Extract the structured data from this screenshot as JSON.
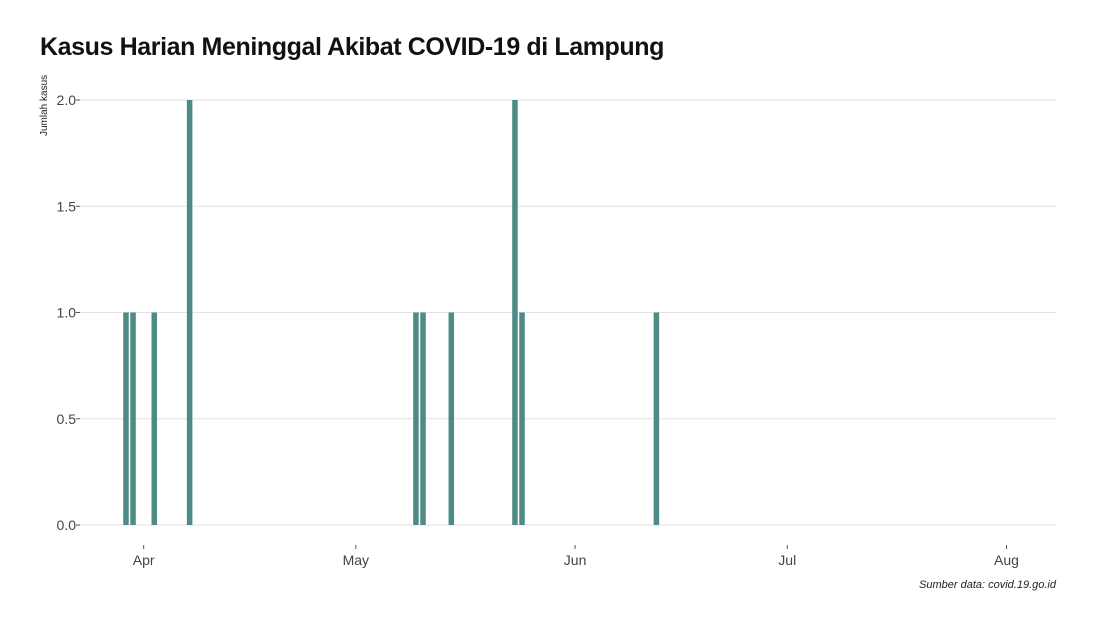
{
  "chart_data": {
    "type": "bar",
    "title": "Kasus Harian Meninggal Akibat COVID-19 di Lampung",
    "xlabel": "",
    "ylabel": "Jumlah kasus",
    "caption": "Sumber data: covid.19.go.id",
    "bar_color": "#4f8b86",
    "grid": true,
    "ylim": [
      0,
      2
    ],
    "yticks": [
      "0.0",
      "0.5",
      "1.0",
      "1.5",
      "2.0"
    ],
    "xlim": [
      "2020-03-23",
      "2020-08-08"
    ],
    "xticks": [
      {
        "date": "2020-04-01",
        "label": "Apr"
      },
      {
        "date": "2020-05-01",
        "label": "May"
      },
      {
        "date": "2020-06-01",
        "label": "Jun"
      },
      {
        "date": "2020-07-01",
        "label": "Jul"
      },
      {
        "date": "2020-08-01",
        "label": "Aug"
      }
    ],
    "x": [
      "2020-03-29",
      "2020-03-30",
      "2020-04-02",
      "2020-04-07",
      "2020-05-09",
      "2020-05-10",
      "2020-05-14",
      "2020-05-23",
      "2020-05-24",
      "2020-06-12"
    ],
    "values": [
      1,
      1,
      1,
      2,
      1,
      1,
      1,
      2,
      1,
      1
    ]
  }
}
